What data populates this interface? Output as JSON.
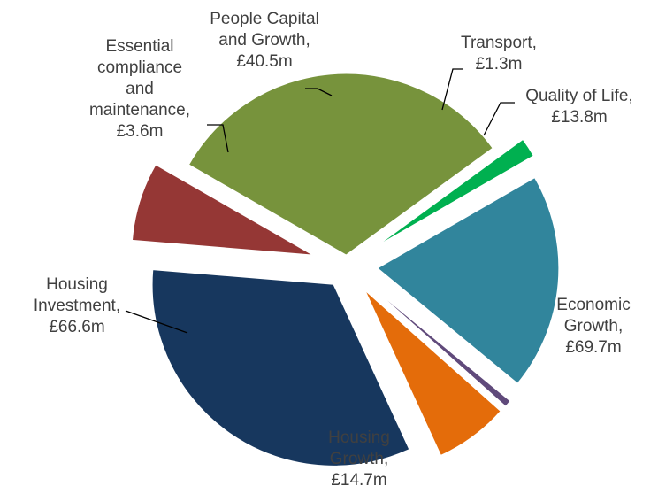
{
  "chart_data": {
    "type": "pie",
    "title": "",
    "unit_prefix": "£",
    "unit_suffix": "m",
    "slices": [
      {
        "label_lines": [
          "Economic",
          "Growth,",
          "£69.7m"
        ],
        "value": 69.7,
        "color": "#17375e"
      },
      {
        "label_lines": [
          "Housing",
          "Growth,",
          "£14.7m"
        ],
        "value": 14.7,
        "color": "#953735"
      },
      {
        "label_lines": [
          "Housing",
          "Investment,",
          "£66.6m"
        ],
        "value": 66.6,
        "color": "#77933c"
      },
      {
        "label_lines": [
          "Essential",
          "compliance",
          "and",
          "maintenance,",
          "£3.6m"
        ],
        "value": 3.6,
        "color": "#00b050"
      },
      {
        "label_lines": [
          "People Capital",
          "and Growth,",
          "£40.5m"
        ],
        "value": 40.5,
        "color": "#31859c"
      },
      {
        "label_lines": [
          "Transport,",
          "£1.3m"
        ],
        "value": 1.3,
        "color": "#604a7b"
      },
      {
        "label_lines": [
          "Quality of Life,",
          "£13.8m"
        ],
        "value": 13.8,
        "color": "#e46c0a"
      }
    ]
  }
}
